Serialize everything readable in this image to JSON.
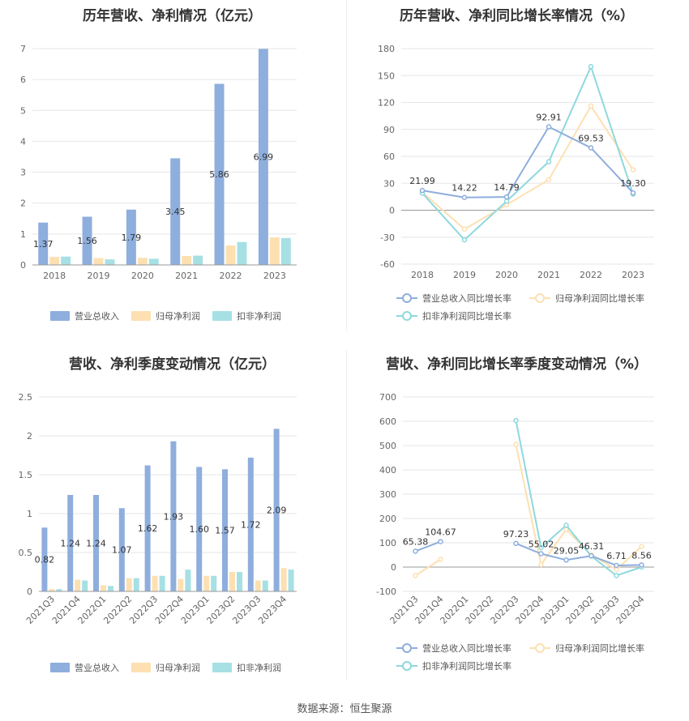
{
  "colors": {
    "revenue": "#8eaedd",
    "net_profit": "#fde0b2",
    "deducted_profit": "#a6e0e4",
    "revenue_line": "#8eaedd",
    "net_profit_line": "#fde0b2",
    "deducted_line": "#8fd8dd",
    "grid": "#e6e6e6",
    "axis_text": "#666666"
  },
  "source": "数据来源：恒生聚源",
  "chart_data": [
    {
      "id": "annual_bar",
      "type": "bar",
      "title": "历年营收、净利情况（亿元）",
      "categories": [
        "2018",
        "2019",
        "2020",
        "2021",
        "2022",
        "2023"
      ],
      "ylim": [
        0,
        7
      ],
      "yticks": [
        0,
        1,
        2,
        3,
        4,
        5,
        6,
        7
      ],
      "series": [
        {
          "name": "营业总收入",
          "values": [
            1.37,
            1.56,
            1.79,
            3.45,
            5.86,
            6.99
          ],
          "labels": [
            "1.37",
            "1.56",
            "1.79",
            "3.45",
            "5.86",
            "6.99"
          ]
        },
        {
          "name": "归母净利润",
          "values": [
            0.26,
            0.22,
            0.23,
            0.29,
            0.63,
            0.89
          ]
        },
        {
          "name": "扣非净利润",
          "values": [
            0.27,
            0.18,
            0.2,
            0.3,
            0.74,
            0.87
          ]
        }
      ],
      "grid": true,
      "legend": "bottom"
    },
    {
      "id": "annual_line",
      "type": "line",
      "title": "历年营收、净利同比增长率情况（%）",
      "categories": [
        "2018",
        "2019",
        "2020",
        "2021",
        "2022",
        "2023"
      ],
      "ylim": [
        -60,
        180
      ],
      "yticks": [
        -60,
        -30,
        0,
        30,
        60,
        90,
        120,
        150,
        180
      ],
      "series": [
        {
          "name": "营业总收入同比增长率",
          "values": [
            21.99,
            14.22,
            14.79,
            92.91,
            69.53,
            19.3
          ],
          "labels": [
            "21.99",
            "14.22",
            "14.79",
            "92.91",
            "69.53",
            "19.30"
          ]
        },
        {
          "name": "归母净利润同比增长率",
          "values": [
            20,
            -21,
            6,
            34,
            116,
            45
          ]
        },
        {
          "name": "扣非净利润同比增长率",
          "values": [
            19,
            -33,
            10,
            54,
            160,
            18
          ]
        }
      ],
      "grid": true,
      "legend": "bottom"
    },
    {
      "id": "quarter_bar",
      "type": "bar",
      "title": "营收、净利季度变动情况（亿元）",
      "categories": [
        "2021Q3",
        "2021Q4",
        "2022Q1",
        "2022Q2",
        "2022Q3",
        "2022Q4",
        "2023Q1",
        "2023Q2",
        "2023Q3",
        "2023Q4"
      ],
      "ylim": [
        0,
        2.5
      ],
      "yticks": [
        0,
        0.5,
        1,
        1.5,
        2,
        2.5
      ],
      "series": [
        {
          "name": "营业总收入",
          "values": [
            0.82,
            1.24,
            1.24,
            1.07,
            1.62,
            1.93,
            1.6,
            1.57,
            1.72,
            2.09
          ],
          "labels": [
            "0.82",
            "1.24",
            "1.24",
            "1.07",
            "1.62",
            "1.93",
            "1.60",
            "1.57",
            "1.72",
            "2.09"
          ]
        },
        {
          "name": "归母净利润",
          "values": [
            0.03,
            0.15,
            0.08,
            0.17,
            0.2,
            0.16,
            0.2,
            0.25,
            0.14,
            0.3
          ]
        },
        {
          "name": "扣非净利润",
          "values": [
            0.03,
            0.14,
            0.07,
            0.17,
            0.2,
            0.28,
            0.2,
            0.25,
            0.14,
            0.28
          ]
        }
      ],
      "grid": true,
      "legend": "bottom"
    },
    {
      "id": "quarter_line",
      "type": "line",
      "title": "营收、净利同比增长率季度变动情况（%）",
      "categories": [
        "2021Q3",
        "2021Q4",
        "2022Q1",
        "2022Q2",
        "2022Q3",
        "2022Q4",
        "2023Q1",
        "2023Q2",
        "2023Q3",
        "2023Q4"
      ],
      "ylim": [
        -100,
        700
      ],
      "yticks": [
        -100,
        0,
        100,
        200,
        300,
        400,
        500,
        600,
        700
      ],
      "series": [
        {
          "name": "营业总收入同比增长率",
          "values": [
            65.38,
            104.67,
            null,
            null,
            97.23,
            55.02,
            29.05,
            46.31,
            6.71,
            8.56
          ],
          "labels": [
            "65.38",
            "104.67",
            "",
            "",
            "97.23",
            "55.02",
            "29.05",
            "46.31",
            "6.71",
            "8.56"
          ]
        },
        {
          "name": "归母净利润同比增长率",
          "values": [
            -35,
            32,
            null,
            null,
            505,
            10,
            155,
            50,
            -10,
            85
          ]
        },
        {
          "name": "扣非净利润同比增长率",
          "values": [
            null,
            null,
            null,
            null,
            603,
            80,
            172,
            45,
            -35,
            0
          ]
        }
      ],
      "grid": true,
      "legend": "bottom"
    }
  ]
}
